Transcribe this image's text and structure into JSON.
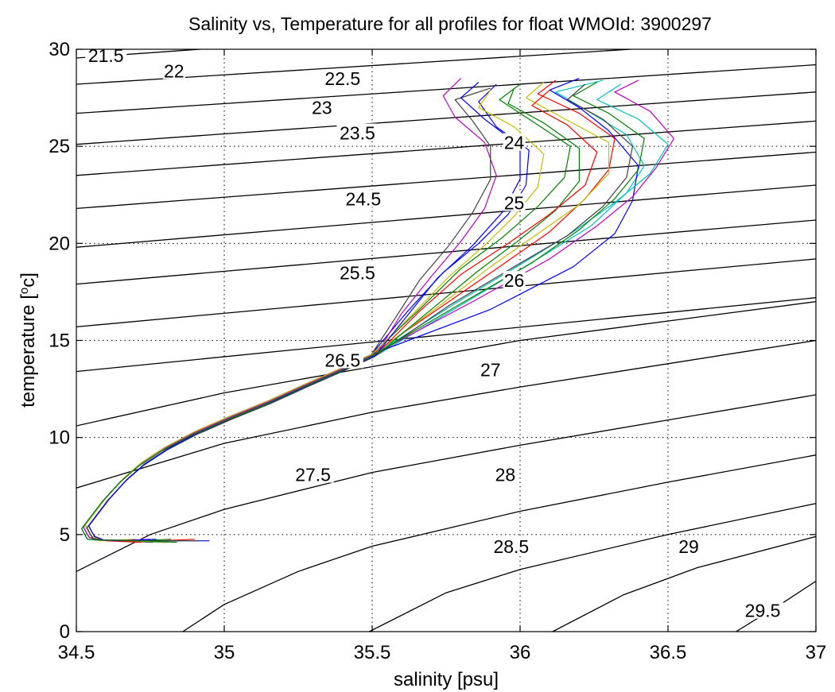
{
  "chart_data": {
    "type": "line",
    "title": "Salinity vs, Temperature for all profiles for float WMOId: 3900297",
    "xlabel": "salinity [psu]",
    "ylabel_main": "temperature [",
    "ylabel_sup": "o",
    "ylabel_end": "c]",
    "xlim": [
      34.5,
      37
    ],
    "ylim": [
      0,
      30
    ],
    "xticks": [
      34.5,
      35,
      35.5,
      36,
      36.5,
      37
    ],
    "xtick_labels": [
      "34.5",
      "35",
      "35.5",
      "36",
      "36.5",
      "37"
    ],
    "yticks": [
      0,
      5,
      10,
      15,
      20,
      25,
      30
    ],
    "ytick_labels": [
      "0",
      "5",
      "10",
      "15",
      "20",
      "25",
      "30"
    ],
    "grid": true,
    "legend": "none",
    "density_contours": [
      {
        "label": "21.5",
        "points": [
          [
            34.5,
            29.55
          ],
          [
            36.3,
            31.5
          ]
        ],
        "label_at": [
          34.6,
          29.6
        ]
      },
      {
        "label": "22",
        "points": [
          [
            34.5,
            28.2
          ],
          [
            37,
            30.6
          ]
        ],
        "label_at": [
          34.83,
          28.8
        ]
      },
      {
        "label": "22.5",
        "points": [
          [
            34.5,
            26.7
          ],
          [
            37,
            29.2
          ]
        ],
        "label_at": [
          35.4,
          28.4
        ]
      },
      {
        "label": "23",
        "points": [
          [
            34.5,
            25.1
          ],
          [
            37,
            27.8
          ]
        ],
        "label_at": [
          35.33,
          26.9
        ]
      },
      {
        "label": "23.5",
        "points": [
          [
            34.5,
            23.5
          ],
          [
            37,
            26.3
          ]
        ],
        "label_at": [
          35.45,
          25.6
        ]
      },
      {
        "label": "24",
        "points": [
          [
            34.5,
            21.8
          ],
          [
            37,
            24.7
          ]
        ],
        "label_at": [
          35.98,
          25.1
        ]
      },
      {
        "label": "24.5",
        "points": [
          [
            34.5,
            19.8
          ],
          [
            37,
            23.0
          ]
        ],
        "label_at": [
          35.47,
          22.2
        ]
      },
      {
        "label": "25",
        "points": [
          [
            34.5,
            17.9
          ],
          [
            37,
            21.2
          ]
        ],
        "label_at": [
          35.98,
          22.0
        ]
      },
      {
        "label": "25.5",
        "points": [
          [
            34.5,
            15.7
          ],
          [
            37,
            19.2
          ]
        ],
        "label_at": [
          35.45,
          18.4
        ]
      },
      {
        "label": "26",
        "points": [
          [
            34.5,
            13.4
          ],
          [
            37,
            17.2
          ]
        ],
        "label_at": [
          35.98,
          18.0
        ]
      },
      {
        "label": "26.5",
        "points": [
          [
            34.5,
            10.6
          ],
          [
            35,
            12.3
          ],
          [
            36,
            15.0
          ],
          [
            37,
            17.0
          ]
        ],
        "label_at": [
          35.4,
          13.9
        ]
      },
      {
        "label": "27",
        "points": [
          [
            34.5,
            7.4
          ],
          [
            35,
            9.7
          ],
          [
            35.5,
            11.3
          ],
          [
            36,
            12.6
          ],
          [
            37,
            15.0
          ]
        ],
        "label_at": [
          35.9,
          13.4
        ]
      },
      {
        "label": "27.5",
        "points": [
          [
            34.5,
            3.1
          ],
          [
            34.75,
            5.0
          ],
          [
            35,
            6.3
          ],
          [
            35.5,
            8.2
          ],
          [
            36,
            9.6
          ],
          [
            37,
            12.2
          ]
        ],
        "label_at": [
          35.3,
          8.0
        ]
      },
      {
        "label": "28",
        "points": [
          [
            34.86,
            0
          ],
          [
            35,
            1.4
          ],
          [
            35.25,
            3.1
          ],
          [
            35.5,
            4.4
          ],
          [
            36,
            6.2
          ],
          [
            36.5,
            7.7
          ],
          [
            37,
            9.1
          ]
        ],
        "label_at": [
          35.95,
          8.0
        ]
      },
      {
        "label": "28.5",
        "points": [
          [
            35.49,
            0
          ],
          [
            35.75,
            2.0
          ],
          [
            36,
            3.2
          ],
          [
            36.5,
            5.0
          ],
          [
            37,
            6.6
          ]
        ],
        "label_at": [
          35.97,
          4.3
        ]
      },
      {
        "label": "29",
        "points": [
          [
            36.11,
            0
          ],
          [
            36.35,
            1.9
          ],
          [
            36.6,
            3.3
          ],
          [
            37,
            4.9
          ]
        ],
        "label_at": [
          36.57,
          4.3
        ]
      },
      {
        "label": "29.5",
        "points": [
          [
            36.73,
            0
          ],
          [
            36.9,
            1.6
          ],
          [
            37,
            2.6
          ]
        ],
        "label_at": [
          36.82,
          1.0
        ]
      }
    ],
    "profiles_shared": {
      "lower_branch": [
        [
          34.55,
          4.85
        ],
        [
          34.54,
          5.1
        ],
        [
          34.53,
          5.4
        ],
        [
          34.56,
          6.0
        ],
        [
          34.6,
          6.8
        ],
        [
          34.66,
          7.8
        ],
        [
          34.72,
          8.6
        ],
        [
          34.8,
          9.4
        ],
        [
          34.9,
          10.2
        ],
        [
          35.02,
          11.0
        ],
        [
          35.15,
          11.8
        ],
        [
          35.28,
          12.7
        ],
        [
          35.4,
          13.5
        ],
        [
          35.5,
          14.2
        ]
      ],
      "bottom_salinity": [
        34.8,
        34.74,
        34.9,
        34.78,
        34.85,
        34.7,
        34.76,
        34.95,
        34.82,
        34.72,
        34.88,
        34.75,
        34.81,
        34.92,
        34.77,
        34.84
      ]
    },
    "series": [
      {
        "color": "#0000ff",
        "upper": [
          [
            35.5,
            14.2
          ],
          [
            35.62,
            16.5
          ],
          [
            35.74,
            18.5
          ],
          [
            35.86,
            20.0
          ],
          [
            35.96,
            21.5
          ],
          [
            36.02,
            23.0
          ],
          [
            36.03,
            24.8
          ],
          [
            35.92,
            26.0
          ],
          [
            35.86,
            27.3
          ],
          [
            35.92,
            28.2
          ]
        ]
      },
      {
        "color": "#008000",
        "upper": [
          [
            35.5,
            14.2
          ],
          [
            35.66,
            16.6
          ],
          [
            35.8,
            18.7
          ],
          [
            35.94,
            20.3
          ],
          [
            36.06,
            21.9
          ],
          [
            36.15,
            23.4
          ],
          [
            36.17,
            25.0
          ],
          [
            36.04,
            26.3
          ],
          [
            35.93,
            27.4
          ],
          [
            36.0,
            28.2
          ]
        ]
      },
      {
        "color": "#ff0000",
        "upper": [
          [
            35.5,
            14.2
          ],
          [
            35.74,
            16.8
          ],
          [
            35.94,
            18.9
          ],
          [
            36.1,
            20.6
          ],
          [
            36.22,
            22.3
          ],
          [
            36.3,
            23.8
          ],
          [
            36.32,
            25.4
          ],
          [
            36.2,
            26.7
          ],
          [
            36.06,
            27.7
          ],
          [
            36.12,
            28.4
          ]
        ]
      },
      {
        "color": "#00bfbf",
        "upper": [
          [
            35.5,
            14.2
          ],
          [
            35.82,
            17.0
          ],
          [
            36.06,
            19.2
          ],
          [
            36.24,
            20.9
          ],
          [
            36.36,
            22.6
          ],
          [
            36.42,
            24.0
          ],
          [
            36.36,
            25.6
          ],
          [
            36.22,
            26.9
          ],
          [
            36.12,
            27.8
          ],
          [
            36.28,
            28.4
          ]
        ]
      },
      {
        "color": "#bf00bf",
        "upper": [
          [
            35.5,
            14.2
          ],
          [
            35.6,
            16.4
          ],
          [
            35.7,
            18.3
          ],
          [
            35.8,
            20.1
          ],
          [
            35.88,
            21.8
          ],
          [
            35.92,
            23.5
          ],
          [
            35.88,
            25.2
          ],
          [
            35.78,
            26.5
          ],
          [
            35.74,
            27.6
          ],
          [
            35.8,
            28.5
          ]
        ]
      },
      {
        "color": "#bfbf00",
        "upper": [
          [
            35.5,
            14.2
          ],
          [
            35.72,
            16.7
          ],
          [
            35.9,
            18.8
          ],
          [
            36.06,
            20.5
          ],
          [
            36.2,
            22.0
          ],
          [
            36.3,
            23.6
          ],
          [
            36.3,
            25.2
          ],
          [
            36.14,
            26.5
          ],
          [
            36.02,
            27.5
          ],
          [
            36.08,
            28.3
          ]
        ]
      },
      {
        "color": "#404040",
        "upper": [
          [
            35.5,
            14.2
          ],
          [
            35.58,
            16.2
          ],
          [
            35.66,
            18.1
          ],
          [
            35.76,
            19.9
          ],
          [
            35.84,
            21.6
          ],
          [
            35.9,
            23.3
          ],
          [
            35.9,
            25.0
          ],
          [
            35.84,
            26.3
          ],
          [
            35.78,
            27.4
          ],
          [
            35.9,
            28.0
          ]
        ]
      },
      {
        "color": "#0000ff",
        "upper": [
          [
            35.5,
            14.2
          ],
          [
            35.9,
            16.6
          ],
          [
            36.18,
            18.8
          ],
          [
            36.32,
            20.5
          ],
          [
            36.38,
            22.2
          ],
          [
            36.4,
            24.0
          ],
          [
            36.3,
            25.8
          ],
          [
            36.2,
            27.0
          ],
          [
            36.1,
            27.9
          ],
          [
            36.2,
            28.5
          ]
        ]
      },
      {
        "color": "#008000",
        "upper": [
          [
            35.5,
            14.2
          ],
          [
            35.7,
            16.6
          ],
          [
            35.86,
            18.6
          ],
          [
            36.0,
            20.2
          ],
          [
            36.12,
            21.7
          ],
          [
            36.2,
            23.2
          ],
          [
            36.2,
            24.9
          ],
          [
            36.08,
            26.2
          ],
          [
            35.96,
            27.2
          ],
          [
            35.98,
            28.0
          ]
        ]
      },
      {
        "color": "#ff0000",
        "upper": [
          [
            35.5,
            14.2
          ],
          [
            35.66,
            16.5
          ],
          [
            35.8,
            18.4
          ],
          [
            35.96,
            20.0
          ],
          [
            36.1,
            21.5
          ],
          [
            36.22,
            23.0
          ],
          [
            36.26,
            24.7
          ],
          [
            36.16,
            26.1
          ],
          [
            36.04,
            27.1
          ],
          [
            36.1,
            27.9
          ]
        ]
      },
      {
        "color": "#00bfbf",
        "upper": [
          [
            35.5,
            14.2
          ],
          [
            35.78,
            16.9
          ],
          [
            36.0,
            18.9
          ],
          [
            36.18,
            20.6
          ],
          [
            36.32,
            22.1
          ],
          [
            36.44,
            23.6
          ],
          [
            36.5,
            25.1
          ],
          [
            36.4,
            26.4
          ],
          [
            36.26,
            27.4
          ],
          [
            36.34,
            28.2
          ]
        ]
      },
      {
        "color": "#bf00bf",
        "upper": [
          [
            35.5,
            14.2
          ],
          [
            35.84,
            17.0
          ],
          [
            36.1,
            19.2
          ],
          [
            36.26,
            20.9
          ],
          [
            36.38,
            22.4
          ],
          [
            36.46,
            23.9
          ],
          [
            36.52,
            25.4
          ],
          [
            36.44,
            26.8
          ],
          [
            36.32,
            27.8
          ],
          [
            36.4,
            28.4
          ]
        ]
      },
      {
        "color": "#bfbf00",
        "upper": [
          [
            35.5,
            14.2
          ],
          [
            35.64,
            16.4
          ],
          [
            35.76,
            18.3
          ],
          [
            35.88,
            19.9
          ],
          [
            35.98,
            21.4
          ],
          [
            36.06,
            22.9
          ],
          [
            36.08,
            24.6
          ],
          [
            35.98,
            26.0
          ],
          [
            35.86,
            27.0
          ],
          [
            35.9,
            27.9
          ]
        ]
      },
      {
        "color": "#404040",
        "upper": [
          [
            35.5,
            14.2
          ],
          [
            35.76,
            16.8
          ],
          [
            35.98,
            18.8
          ],
          [
            36.16,
            20.4
          ],
          [
            36.28,
            21.9
          ],
          [
            36.36,
            23.4
          ],
          [
            36.38,
            25.0
          ],
          [
            36.28,
            26.4
          ],
          [
            36.16,
            27.4
          ],
          [
            36.22,
            28.2
          ]
        ]
      },
      {
        "color": "#0000ff",
        "upper": [
          [
            35.5,
            14.2
          ],
          [
            35.62,
            16.3
          ],
          [
            35.72,
            18.2
          ],
          [
            35.84,
            19.9
          ],
          [
            35.94,
            21.6
          ],
          [
            36.0,
            23.3
          ],
          [
            36.0,
            25.0
          ],
          [
            35.88,
            26.4
          ],
          [
            35.8,
            27.5
          ],
          [
            35.86,
            28.3
          ]
        ]
      },
      {
        "color": "#008000",
        "upper": [
          [
            35.5,
            14.2
          ],
          [
            35.8,
            16.9
          ],
          [
            36.04,
            19.0
          ],
          [
            36.2,
            20.7
          ],
          [
            36.32,
            22.3
          ],
          [
            36.4,
            23.8
          ],
          [
            36.42,
            25.4
          ],
          [
            36.3,
            26.7
          ],
          [
            36.18,
            27.6
          ],
          [
            36.26,
            28.3
          ]
        ]
      }
    ]
  }
}
